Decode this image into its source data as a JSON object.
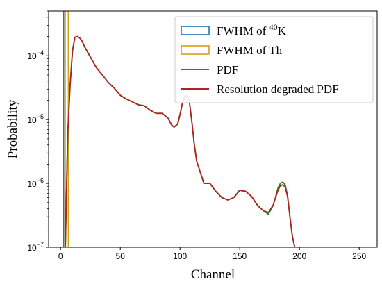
{
  "chart_data": {
    "type": "line",
    "title": "",
    "xlabel": "Channel",
    "ylabel": "Probability",
    "xlim": [
      -10,
      265
    ],
    "ylim": [
      1e-07,
      0.0005
    ],
    "yscale": "log",
    "grid": false,
    "legend_position": "top-right",
    "x_ticks": [
      0,
      50,
      100,
      150,
      200,
      250
    ],
    "x_tick_labels": [
      "0",
      "50",
      "100",
      "150",
      "200",
      "250"
    ],
    "y_ticks": [
      1e-07,
      1e-06,
      1e-05,
      0.0001
    ],
    "y_tick_bases": [
      "10",
      "10",
      "10",
      "10"
    ],
    "y_tick_exponents": [
      "−7",
      "−6",
      "−5",
      "−4"
    ],
    "legend": [
      {
        "type": "rect",
        "color": "#1f77b4",
        "label_pre": "FWHM of ",
        "label_sup": "40",
        "label_post": "K"
      },
      {
        "type": "rect",
        "color": "#d4a017",
        "label_pre": "FWHM of Th",
        "label_sup": "",
        "label_post": ""
      },
      {
        "type": "line",
        "color": "#228b22",
        "label_pre": "PDF",
        "label_sup": "",
        "label_post": ""
      },
      {
        "type": "line",
        "color": "#b22222",
        "label_pre": "Resolution degraded PDF",
        "label_sup": "",
        "label_post": ""
      }
    ],
    "fwhm_regions": [
      {
        "name": "FWHM of 40K",
        "x_start": 2.5,
        "x_end": 3.8,
        "color": "#1f77b4"
      },
      {
        "name": "FWHM of Th",
        "x_start": 3.6,
        "x_end": 6.5,
        "color": "#d4a017"
      }
    ],
    "series": [
      {
        "name": "PDF",
        "color": "#228b22",
        "x": [
          4,
          6,
          8,
          10,
          12,
          14,
          16,
          18,
          20,
          25,
          30,
          35,
          40,
          45,
          50,
          55,
          60,
          65,
          70,
          75,
          80,
          85,
          90,
          93,
          95,
          98,
          100,
          102,
          104,
          106,
          108,
          110,
          112,
          114,
          116,
          118,
          120,
          125,
          130,
          135,
          140,
          145,
          150,
          155,
          160,
          165,
          170,
          174,
          178,
          182,
          184,
          186,
          188,
          190,
          192,
          194,
          196
        ],
        "y": [
          1e-07,
          6e-06,
          3.5e-05,
          0.00012,
          0.000195,
          0.0002,
          0.00019,
          0.00017,
          0.00014,
          9.5e-05,
          6.5e-05,
          5e-05,
          3.8e-05,
          3.1e-05,
          2.4e-05,
          2.1e-05,
          1.9e-05,
          1.7e-05,
          1.65e-05,
          1.4e-05,
          1.25e-05,
          1.25e-05,
          1.05e-05,
          8.2e-06,
          7.6e-06,
          8.5e-06,
          1.2e-05,
          1.8e-05,
          2.3e-05,
          2.35e-05,
          1.8e-05,
          9e-06,
          4e-06,
          2.2e-06,
          1.7e-06,
          1.3e-06,
          1e-06,
          1e-06,
          7.5e-07,
          6e-07,
          5.5e-07,
          6e-07,
          7.8e-07,
          7.5e-07,
          6.2e-07,
          4.5e-07,
          3.7e-07,
          3.3e-07,
          4.5e-07,
          8.5e-07,
          1e-06,
          1.05e-06,
          9.5e-07,
          6.5e-07,
          3e-07,
          1.5e-07,
          1e-07
        ]
      },
      {
        "name": "Resolution degraded PDF",
        "color": "#b22222",
        "x": [
          4,
          6,
          8,
          10,
          12,
          14,
          16,
          18,
          20,
          25,
          30,
          35,
          40,
          45,
          50,
          55,
          60,
          65,
          70,
          75,
          80,
          85,
          90,
          93,
          95,
          98,
          100,
          102,
          104,
          106,
          108,
          110,
          112,
          114,
          116,
          118,
          120,
          125,
          130,
          135,
          140,
          145,
          150,
          155,
          160,
          165,
          170,
          174,
          178,
          182,
          184,
          186,
          188,
          190,
          192,
          194,
          196
        ],
        "y": [
          1e-07,
          6e-06,
          3.5e-05,
          0.00012,
          0.000195,
          0.0002,
          0.00019,
          0.00017,
          0.00014,
          9.5e-05,
          6.5e-05,
          5e-05,
          3.8e-05,
          3.1e-05,
          2.4e-05,
          2.1e-05,
          1.9e-05,
          1.7e-05,
          1.65e-05,
          1.4e-05,
          1.25e-05,
          1.25e-05,
          1.05e-05,
          8.2e-06,
          7.6e-06,
          8.5e-06,
          1.2e-05,
          1.8e-05,
          2.3e-05,
          2.35e-05,
          1.8e-05,
          9e-06,
          4e-06,
          2.2e-06,
          1.7e-06,
          1.3e-06,
          1e-06,
          1e-06,
          7.5e-07,
          6e-07,
          5.5e-07,
          6e-07,
          7.8e-07,
          7.5e-07,
          6.2e-07,
          4.5e-07,
          3.7e-07,
          3.5e-07,
          4.6e-07,
          7.8e-07,
          9.2e-07,
          9.5e-07,
          8.8e-07,
          6.2e-07,
          3e-07,
          1.5e-07,
          1e-07
        ]
      }
    ]
  }
}
